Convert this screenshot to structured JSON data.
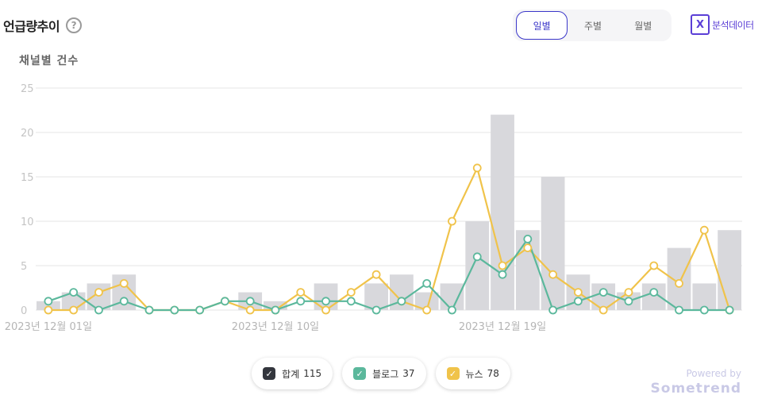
{
  "header": {
    "title": "언급량추이",
    "help_icon": "?"
  },
  "period_tabs": [
    {
      "label": "일별",
      "active": true
    },
    {
      "label": "주별",
      "active": false
    },
    {
      "label": "월별",
      "active": false
    }
  ],
  "export": {
    "icon": "excel-icon",
    "icon_glyph": "X",
    "label": "분석데이터"
  },
  "chart_data": {
    "type": "bar+line",
    "ylabel": "채널별 건수",
    "ylim": [
      0,
      25
    ],
    "yticks": [
      0,
      5,
      10,
      15,
      20,
      25
    ],
    "grid": true,
    "x": [
      "2023-12-01",
      "2023-12-02",
      "2023-12-03",
      "2023-12-04",
      "2023-12-05",
      "2023-12-06",
      "2023-12-07",
      "2023-12-08",
      "2023-12-09",
      "2023-12-10",
      "2023-12-11",
      "2023-12-12",
      "2023-12-13",
      "2023-12-14",
      "2023-12-15",
      "2023-12-16",
      "2023-12-17",
      "2023-12-18",
      "2023-12-19",
      "2023-12-20",
      "2023-12-21",
      "2023-12-22",
      "2023-12-23",
      "2023-12-24",
      "2023-12-25",
      "2023-12-26",
      "2023-12-27",
      "2023-12-28"
    ],
    "xtick_labels": [
      {
        "index": 1,
        "label": "2023년 12월 01일"
      },
      {
        "index": 10,
        "label": "2023년 12월 10일"
      },
      {
        "index": 19,
        "label": "2023년 12월 19일"
      }
    ],
    "series": [
      {
        "name": "합계",
        "type": "bar",
        "color": "#d8d8dc",
        "values": [
          1,
          2,
          3,
          4,
          0,
          0,
          0,
          0,
          2,
          1,
          0,
          3,
          0,
          3,
          4,
          2,
          3,
          10,
          22,
          9,
          15,
          4,
          3,
          2,
          3,
          7,
          3,
          9
        ]
      },
      {
        "name": "블로그",
        "type": "line",
        "color": "#5bb89c",
        "values": [
          1,
          2,
          0,
          1,
          0,
          0,
          0,
          1,
          1,
          0,
          1,
          1,
          1,
          0,
          1,
          3,
          0,
          6,
          4,
          8,
          0,
          1,
          2,
          1,
          2,
          0,
          0,
          0
        ]
      },
      {
        "name": "뉴스",
        "type": "line",
        "color": "#f0c34a",
        "values": [
          0,
          0,
          2,
          3,
          0,
          0,
          0,
          1,
          0,
          0,
          2,
          0,
          2,
          4,
          1,
          0,
          10,
          16,
          5,
          7,
          4,
          2,
          0,
          2,
          5,
          3,
          9,
          0
        ]
      }
    ]
  },
  "legend": [
    {
      "label": "합계",
      "count": "115",
      "color": "#33363d"
    },
    {
      "label": "블로그",
      "count": "37",
      "color": "#5bb89c"
    },
    {
      "label": "뉴스",
      "count": "78",
      "color": "#f0c34a"
    }
  ],
  "footer": {
    "powered_by": "Powered by",
    "brand": "Sometrend"
  }
}
